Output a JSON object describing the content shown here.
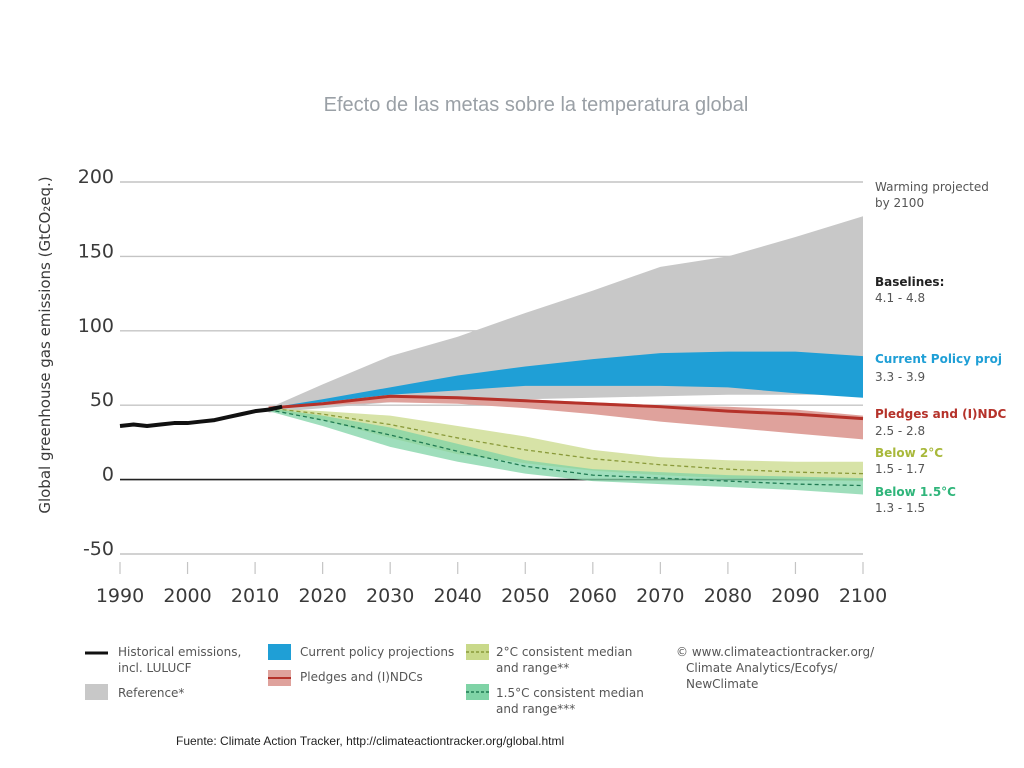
{
  "slide": {
    "title": "Efecto de las metas sobre la temperatura global",
    "source": "Fuente: Climate Action Tracker, http://climateactiontracker.org/global.html"
  },
  "colors": {
    "historical": "#111111",
    "reference": "#c8c8c8",
    "current_policy": "#1f9fd6",
    "pledges": "#b5322a",
    "pledges_range": "#dfa29c",
    "below2": "#c9d98a",
    "below2_line": "#8a9a3a",
    "below15": "#7fd3a6",
    "below15_line": "#1f7a52",
    "text_current": "#1f9fd6",
    "text_pledges": "#b5322a",
    "text_below2": "#a8b83a",
    "text_below15": "#2fb57a"
  },
  "chart_data": {
    "type": "area",
    "ylabel": "Global greenhouse gas emissions (GtCO₂eq.)",
    "xlim": [
      1990,
      2100
    ],
    "ylim": [
      -50,
      200
    ],
    "x_ticks": [
      1990,
      2000,
      2010,
      2020,
      2030,
      2040,
      2050,
      2060,
      2070,
      2080,
      2090,
      2100
    ],
    "y_ticks": [
      200,
      150,
      100,
      50,
      0,
      -50
    ],
    "series": [
      {
        "key": "historical",
        "name": "Historical emissions, incl. LULUCF",
        "kind": "line",
        "x": [
          1990,
          1992,
          1994,
          1996,
          1998,
          2000,
          2002,
          2004,
          2006,
          2008,
          2010,
          2012,
          2014
        ],
        "y": [
          36,
          37,
          36,
          37,
          38,
          38,
          39,
          40,
          42,
          44,
          46,
          47,
          49
        ]
      },
      {
        "key": "reference",
        "name": "Reference*",
        "kind": "range",
        "x": [
          2012,
          2020,
          2030,
          2040,
          2050,
          2060,
          2070,
          2080,
          2090,
          2100
        ],
        "upper": [
          48,
          64,
          83,
          96,
          112,
          127,
          143,
          150,
          163,
          177
        ],
        "lower": [
          45,
          48,
          52,
          53,
          54,
          55,
          56,
          57,
          57,
          57
        ]
      },
      {
        "key": "current_policy",
        "name": "Current policy projections",
        "kind": "range",
        "x": [
          2012,
          2020,
          2030,
          2040,
          2050,
          2060,
          2070,
          2080,
          2090,
          2100
        ],
        "upper": [
          48,
          54,
          62,
          70,
          76,
          81,
          85,
          86,
          86,
          83
        ],
        "lower": [
          48,
          52,
          57,
          60,
          63,
          63,
          63,
          62,
          58,
          55
        ]
      },
      {
        "key": "pledges",
        "name": "Pledges and (I)NDCs",
        "kind": "range_median",
        "x": [
          2012,
          2020,
          2030,
          2040,
          2050,
          2060,
          2070,
          2080,
          2090,
          2100
        ],
        "upper": [
          48,
          52,
          57,
          56,
          54,
          52,
          50,
          49,
          47,
          43
        ],
        "lower": [
          48,
          50,
          52,
          51,
          48,
          44,
          39,
          35,
          31,
          27
        ],
        "median": [
          48,
          51,
          56,
          55,
          53,
          51,
          49,
          46,
          44,
          41
        ]
      },
      {
        "key": "below2",
        "name": "2°C consistent median and range**",
        "kind": "range_median",
        "x": [
          2012,
          2020,
          2030,
          2040,
          2050,
          2060,
          2070,
          2080,
          2090,
          2100
        ],
        "upper": [
          48,
          46,
          43,
          36,
          29,
          20,
          15,
          13,
          12,
          12
        ],
        "lower": [
          47,
          40,
          28,
          17,
          11,
          6,
          3,
          1,
          0,
          -1
        ],
        "median": [
          48,
          44,
          37,
          28,
          20,
          14,
          10,
          7,
          5,
          4
        ]
      },
      {
        "key": "below15",
        "name": "1.5°C consistent median and range***",
        "kind": "range_median",
        "x": [
          2012,
          2020,
          2030,
          2040,
          2050,
          2060,
          2070,
          2080,
          2090,
          2100
        ],
        "upper": [
          48,
          43,
          35,
          24,
          13,
          7,
          5,
          3,
          2,
          1
        ],
        "lower": [
          46,
          36,
          22,
          12,
          4,
          -1,
          -3,
          -5,
          -7,
          -10
        ],
        "median": [
          47,
          40,
          30,
          19,
          9,
          3,
          1,
          -1,
          -3,
          -4
        ]
      }
    ],
    "annotations": {
      "header": "Warming projected\nby 2100",
      "baselines_title": "Baselines:",
      "baselines_range": "4.1 - 4.8",
      "current_title": "Current Policy proj",
      "current_range": "3.3 - 3.9",
      "pledges_title": "Pledges and (I)NDC",
      "pledges_range": "2.5 - 2.8",
      "below2_title": "Below 2°C",
      "below2_range": "1.5 - 1.7",
      "below15_title": "Below 1.5°C",
      "below15_range": "1.3 - 1.5"
    },
    "legend": {
      "historical_1": "Historical emissions,",
      "historical_2": "incl. LULUCF",
      "reference": "Reference*",
      "current": "Current policy projections",
      "pledges": "Pledges and (I)NDCs",
      "below2_1": "2°C consistent median",
      "below2_2": "and range**",
      "below15_1": "1.5°C consistent median",
      "below15_2": "and range***",
      "credit_1": "© www.climateactiontracker.org/",
      "credit_2": "Climate Analytics/Ecofys/",
      "credit_3": "NewClimate"
    }
  }
}
